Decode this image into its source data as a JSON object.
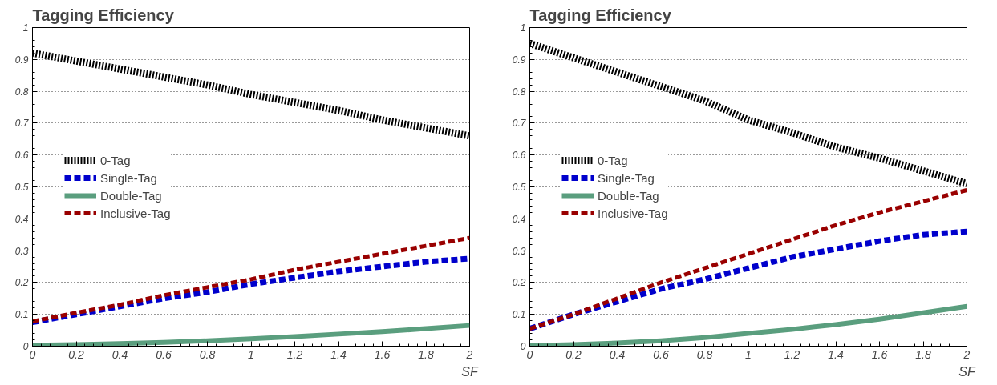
{
  "chart_data": [
    {
      "type": "line",
      "title": "Tagging Efficiency",
      "xlabel": "SF",
      "x": [
        0,
        0.2,
        0.4,
        0.6,
        0.8,
        1.0,
        1.2,
        1.4,
        1.6,
        1.8,
        2.0
      ],
      "xlim": [
        0,
        2
      ],
      "ylim": [
        0,
        1
      ],
      "xticks": [
        0,
        0.2,
        0.4,
        0.6,
        0.8,
        1,
        1.2,
        1.4,
        1.6,
        1.8,
        2
      ],
      "yticks": [
        0,
        0.1,
        0.2,
        0.3,
        0.4,
        0.5,
        0.6,
        0.7,
        0.8,
        0.9,
        1
      ],
      "grid": "y",
      "legend": "left",
      "marker": "none",
      "series": [
        {
          "name": "0-Tag",
          "color": "#000000",
          "line_style": "dotted",
          "values": [
            0.92,
            0.895,
            0.87,
            0.845,
            0.82,
            0.79,
            0.765,
            0.74,
            0.71,
            0.685,
            0.66
          ]
        },
        {
          "name": "Single-Tag",
          "color": "#0000cc",
          "line_style": "dashed",
          "values": [
            0.075,
            0.1,
            0.125,
            0.15,
            0.17,
            0.195,
            0.215,
            0.235,
            0.25,
            0.265,
            0.275
          ]
        },
        {
          "name": "Double-Tag",
          "color": "#5a9e7e",
          "line_style": "solid",
          "values": [
            0.003,
            0.005,
            0.008,
            0.012,
            0.017,
            0.023,
            0.03,
            0.038,
            0.046,
            0.055,
            0.065
          ]
        },
        {
          "name": "Inclusive-Tag",
          "color": "#990000",
          "line_style": "dashed",
          "values": [
            0.078,
            0.105,
            0.13,
            0.16,
            0.185,
            0.21,
            0.24,
            0.265,
            0.29,
            0.315,
            0.34
          ]
        }
      ]
    },
    {
      "type": "line",
      "title": "Tagging Efficiency",
      "xlabel": "SF",
      "x": [
        0,
        0.2,
        0.4,
        0.6,
        0.8,
        1.0,
        1.2,
        1.4,
        1.6,
        1.8,
        2.0
      ],
      "xlim": [
        0,
        2
      ],
      "ylim": [
        0,
        1
      ],
      "xticks": [
        0,
        0.2,
        0.4,
        0.6,
        0.8,
        1,
        1.2,
        1.4,
        1.6,
        1.8,
        2
      ],
      "yticks": [
        0,
        0.1,
        0.2,
        0.3,
        0.4,
        0.5,
        0.6,
        0.7,
        0.8,
        0.9,
        1
      ],
      "grid": "y",
      "legend": "left",
      "marker": "none",
      "series": [
        {
          "name": "0-Tag",
          "color": "#000000",
          "line_style": "dotted",
          "values": [
            0.95,
            0.905,
            0.86,
            0.815,
            0.77,
            0.71,
            0.67,
            0.625,
            0.59,
            0.55,
            0.51
          ]
        },
        {
          "name": "Single-Tag",
          "color": "#0000cc",
          "line_style": "dashed",
          "values": [
            0.055,
            0.1,
            0.14,
            0.18,
            0.21,
            0.245,
            0.28,
            0.305,
            0.33,
            0.35,
            0.36
          ]
        },
        {
          "name": "Double-Tag",
          "color": "#5a9e7e",
          "line_style": "solid",
          "values": [
            0.002,
            0.005,
            0.01,
            0.017,
            0.027,
            0.04,
            0.053,
            0.068,
            0.085,
            0.105,
            0.125
          ]
        },
        {
          "name": "Inclusive-Tag",
          "color": "#990000",
          "line_style": "dashed",
          "values": [
            0.055,
            0.1,
            0.15,
            0.2,
            0.245,
            0.29,
            0.335,
            0.38,
            0.42,
            0.455,
            0.49
          ]
        }
      ]
    }
  ]
}
